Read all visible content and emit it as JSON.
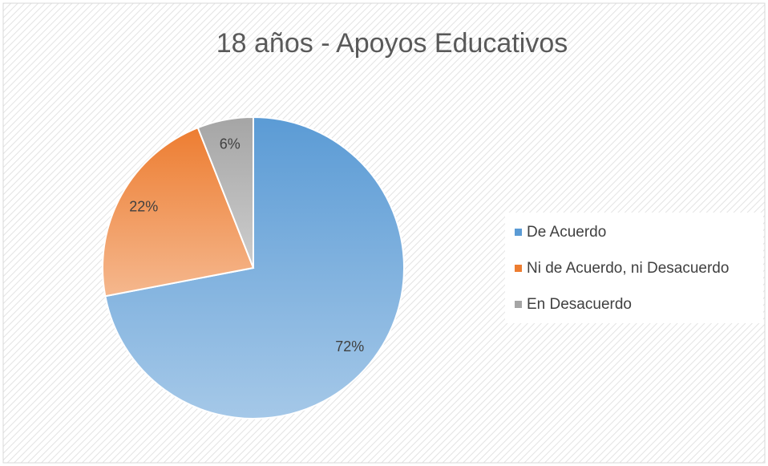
{
  "chart_data": {
    "type": "pie",
    "title": "18 años - Apoyos Educativos",
    "categories": [
      "De Acuerdo",
      "Ni de Acuerdo, ni Desacuerdo",
      "En Desacuerdo"
    ],
    "values": [
      72,
      22,
      6
    ],
    "value_labels": [
      "72%",
      "22%",
      "6%"
    ],
    "colors": [
      "#5b9bd5",
      "#ed7d31",
      "#a5a5a5"
    ],
    "legend": "right"
  }
}
